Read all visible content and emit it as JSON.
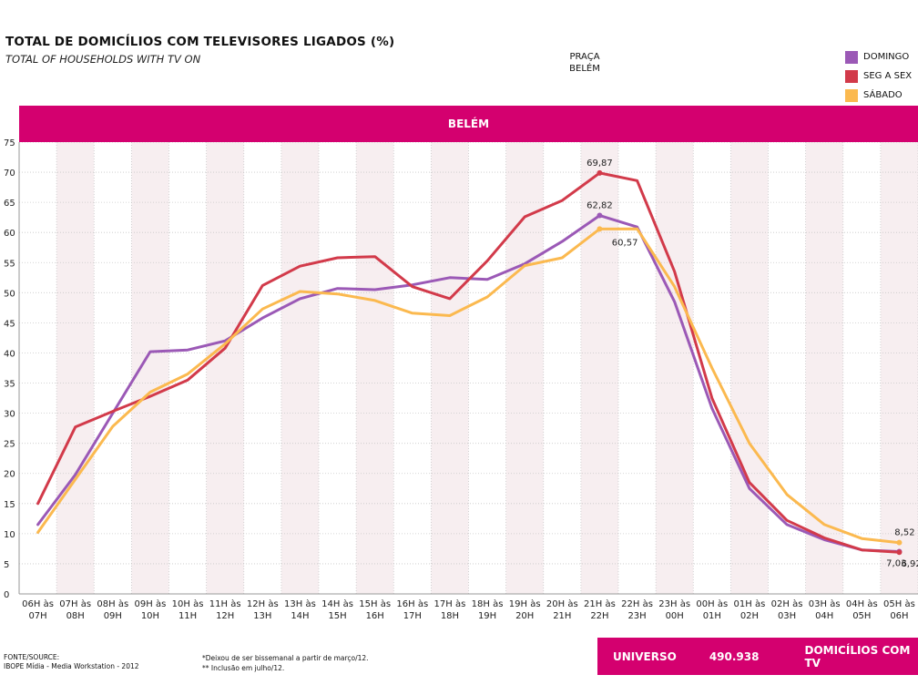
{
  "header": {
    "title": "TOTAL DE DOMICÍLIOS COM TELEVISORES LIGADOS (%)",
    "subtitle": "TOTAL OF HOUSEHOLDS WITH TV ON",
    "praca_line1": "PRAÇA",
    "praca_line2": "BELÉM"
  },
  "legend": [
    {
      "label": "DOMINGO",
      "color": "#9b59b6"
    },
    {
      "label": "SEG A SEX",
      "color": "#d23a4a"
    },
    {
      "label": "SÁBADO",
      "color": "#fbb94f"
    }
  ],
  "band": {
    "label": "BELÉM"
  },
  "chart_data": {
    "type": "line",
    "title": "BELÉM",
    "categories": [
      "06H às 07H",
      "07H às 08H",
      "08H às 09H",
      "09H às 10H",
      "10H às 11H",
      "11H às 12H",
      "12H às 13H",
      "13H às 14H",
      "14H às 15H",
      "15H às 16H",
      "16H às 17H",
      "17H às 18H",
      "18H às 19H",
      "19H às 20H",
      "20H às 21H",
      "21H às 22H",
      "22H às 23H",
      "23H às 00H",
      "00H às 01H",
      "01H às 02H",
      "02H às 03H",
      "03H às 04H",
      "04H às 05H",
      "05H às 06H"
    ],
    "category_lines": [
      [
        "06H às",
        "07H"
      ],
      [
        "07H às",
        "08H"
      ],
      [
        "08H às",
        "09H"
      ],
      [
        "09H às",
        "10H"
      ],
      [
        "10H às",
        "11H"
      ],
      [
        "11H às",
        "12H"
      ],
      [
        "12H às",
        "13H"
      ],
      [
        "13H às",
        "14H"
      ],
      [
        "14H às",
        "15H"
      ],
      [
        "15H às",
        "16H"
      ],
      [
        "16H às",
        "17H"
      ],
      [
        "17H às",
        "18H"
      ],
      [
        "18H às",
        "19H"
      ],
      [
        "19H às",
        "20H"
      ],
      [
        "20H às",
        "21H"
      ],
      [
        "21H às",
        "22H"
      ],
      [
        "22H às",
        "23H"
      ],
      [
        "23H às",
        "00H"
      ],
      [
        "00H às",
        "01H"
      ],
      [
        "01H às",
        "02H"
      ],
      [
        "02H às",
        "03H"
      ],
      [
        "03H às",
        "04H"
      ],
      [
        "04H às",
        "05H"
      ],
      [
        "05H às",
        "06H"
      ]
    ],
    "ylim": [
      0,
      75
    ],
    "yticks": [
      0,
      5,
      10,
      15,
      20,
      25,
      30,
      35,
      40,
      45,
      50,
      55,
      60,
      65,
      70,
      75
    ],
    "grid": true,
    "legend_position": "top-right",
    "series": [
      {
        "name": "DOMINGO",
        "color": "#9b59b6",
        "values": [
          11.5,
          19.8,
          30.0,
          40.2,
          40.5,
          42.0,
          45.8,
          49.0,
          50.7,
          50.5,
          51.3,
          52.5,
          52.2,
          54.8,
          58.5,
          62.82,
          60.9,
          48.5,
          30.8,
          17.5,
          11.5,
          9.0,
          7.3,
          7.03
        ]
      },
      {
        "name": "SEG A SEX",
        "color": "#d23a4a",
        "values": [
          15.0,
          27.7,
          30.3,
          32.8,
          35.5,
          40.8,
          51.2,
          54.4,
          55.8,
          56.0,
          51.0,
          49.0,
          55.3,
          62.6,
          65.3,
          69.87,
          68.6,
          53.5,
          32.5,
          18.5,
          12.2,
          9.3,
          7.3,
          6.92
        ]
      },
      {
        "name": "SÁBADO",
        "color": "#fbb94f",
        "values": [
          10.2,
          19.0,
          27.8,
          33.5,
          36.5,
          41.5,
          47.3,
          50.2,
          49.8,
          48.7,
          46.6,
          46.2,
          49.3,
          54.5,
          55.8,
          60.57,
          60.6,
          51.0,
          37.5,
          25.0,
          16.5,
          11.5,
          9.2,
          8.52
        ]
      }
    ],
    "data_labels": [
      {
        "series": "SEG A SEX",
        "index": 15,
        "text": "69,87",
        "pos": "above"
      },
      {
        "series": "DOMINGO",
        "index": 15,
        "text": "62,82",
        "pos": "above"
      },
      {
        "series": "SÁBADO",
        "index": 15,
        "text": "60,57",
        "pos": "below-right"
      },
      {
        "series": "SÁBADO",
        "index": 23,
        "text": "8,52",
        "pos": "above"
      },
      {
        "series": "DOMINGO",
        "index": 23,
        "text": "7,03",
        "pos": "below-left"
      },
      {
        "series": "SEG A SEX",
        "index": 23,
        "text": "6,92",
        "pos": "below-right"
      }
    ]
  },
  "footer": {
    "source_line1": "FONTE/SOURCE:",
    "source_line2": "IBOPE Mídia - Media Workstation - 2012",
    "note1": "*Deixou de ser bissemanal a partir de março/12.",
    "note2": "** Inclusão em julho/12.",
    "universo_label": "UNIVERSO",
    "universo_value": "490.938",
    "universo_unit": "DOMICÍLIOS COM TV"
  }
}
